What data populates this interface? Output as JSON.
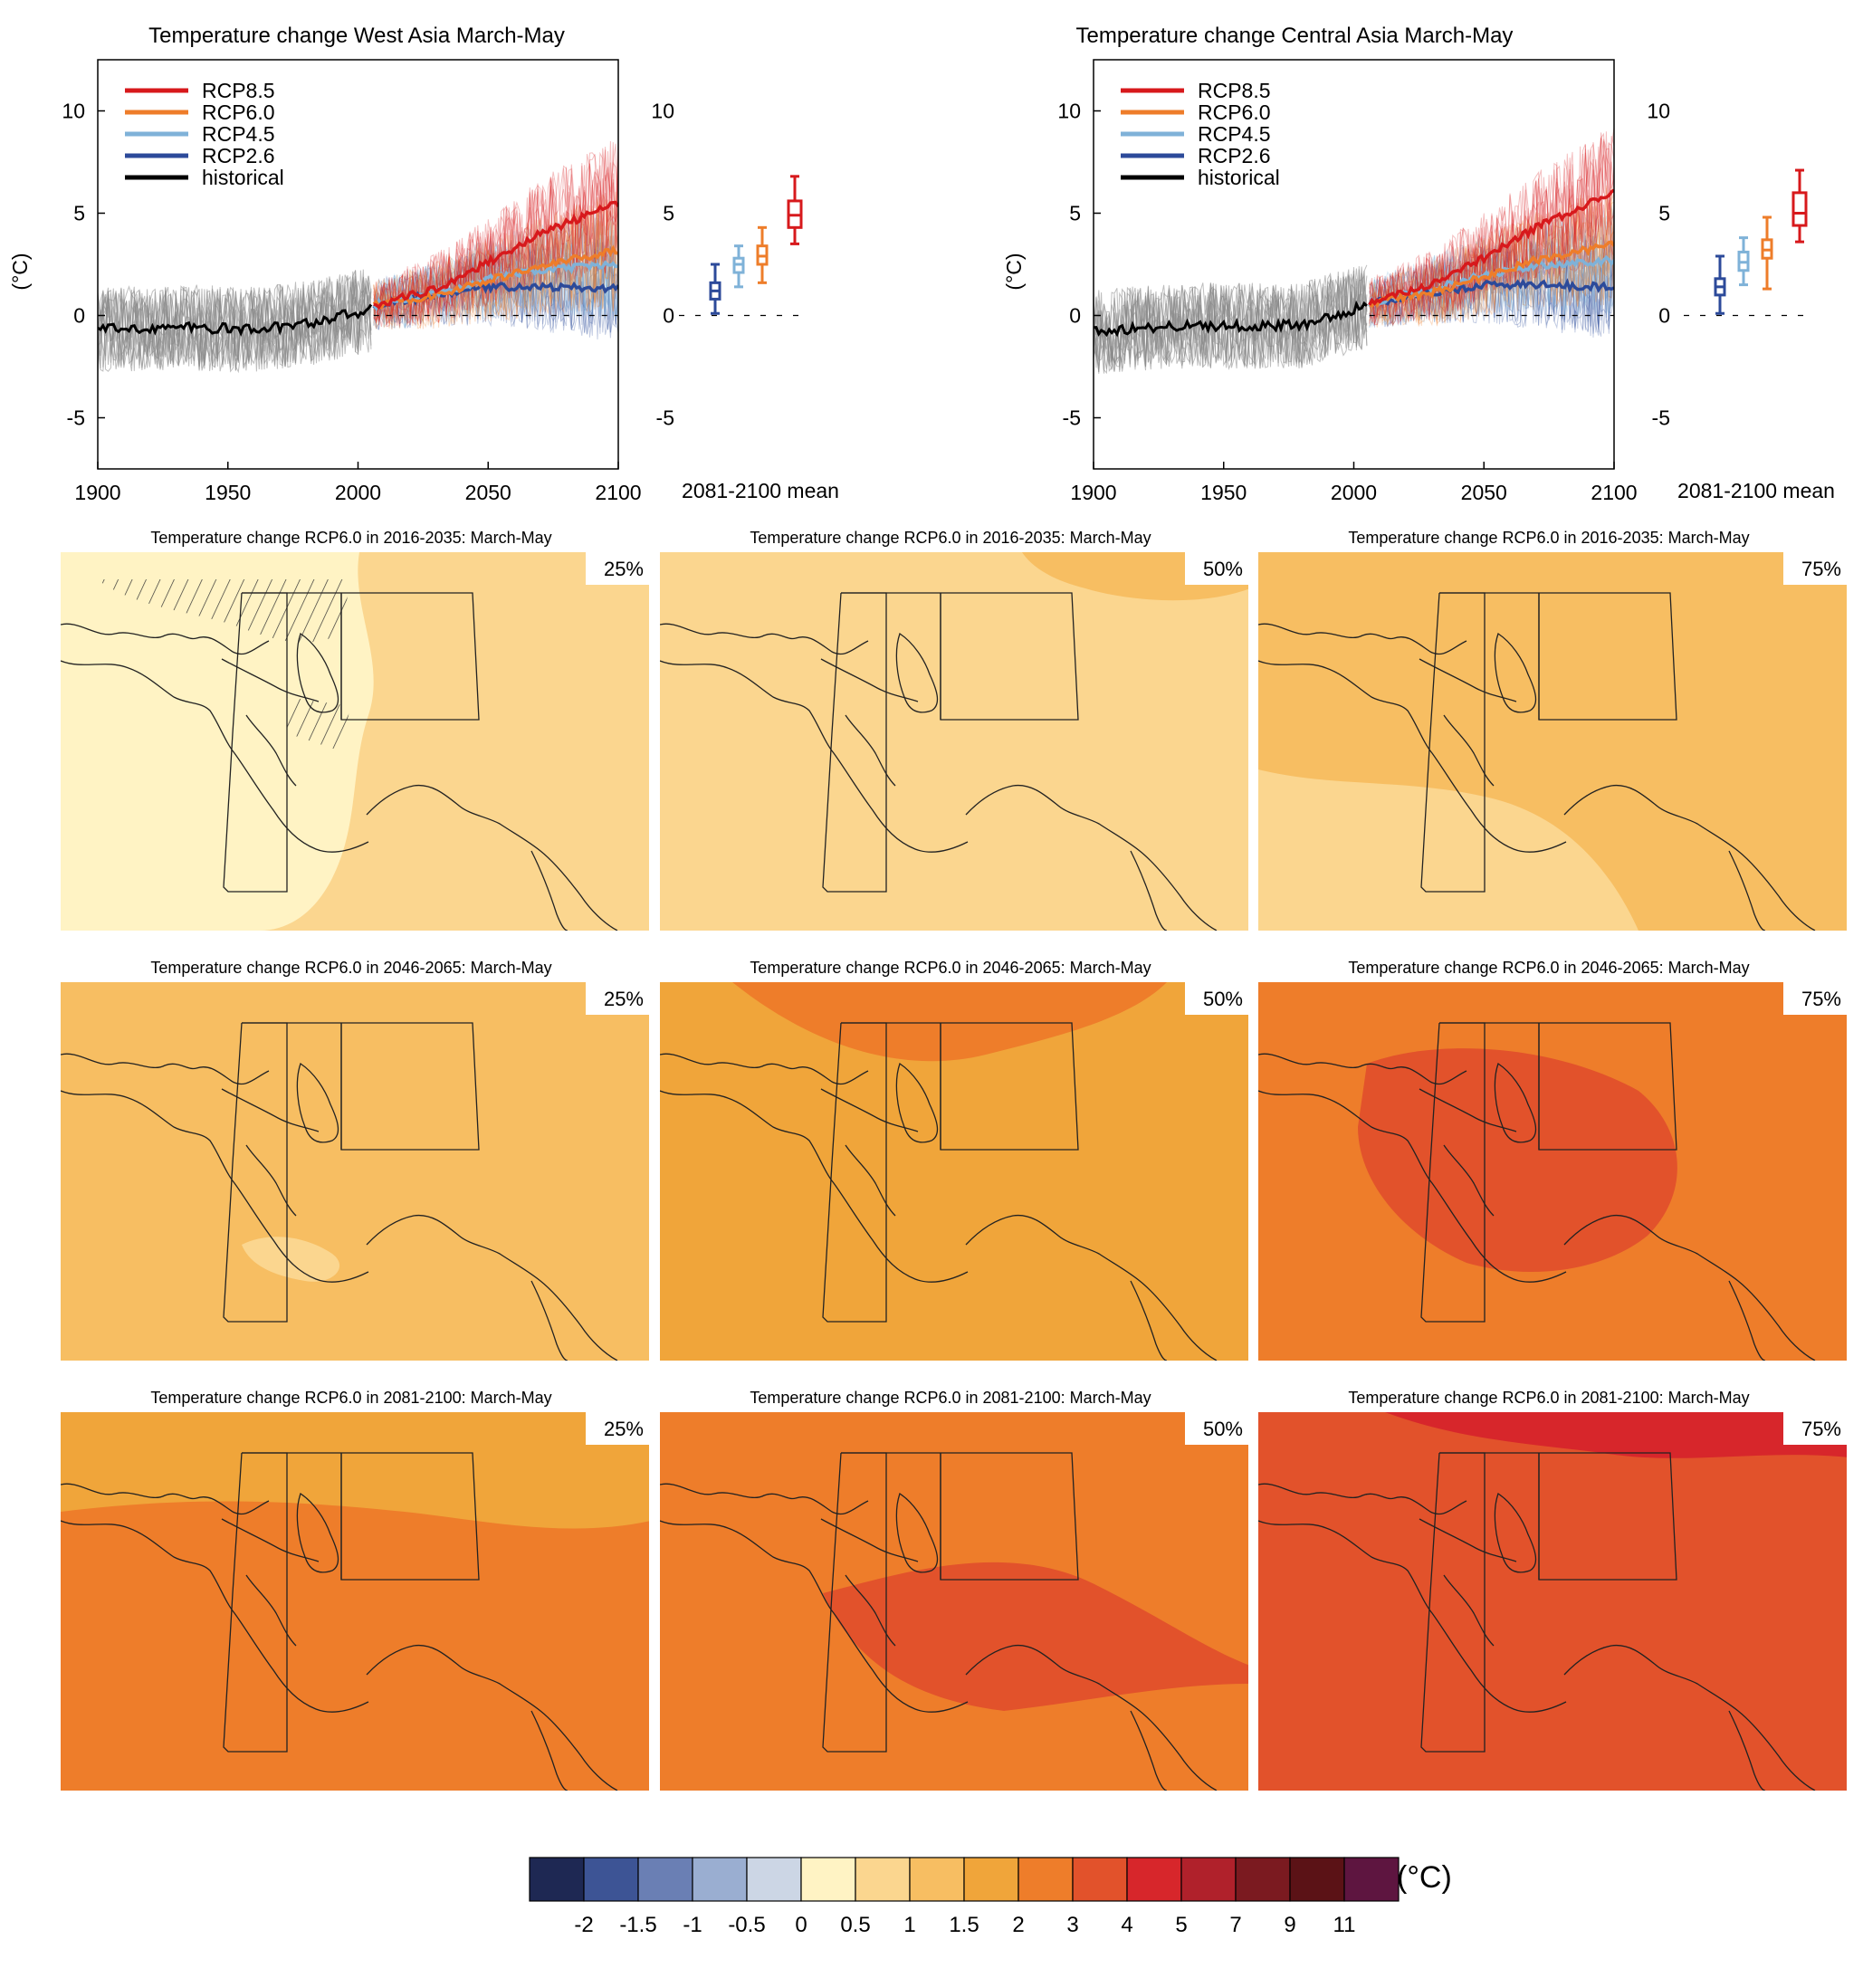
{
  "colors": {
    "rcp85": "#d7191c",
    "rcp60": "#ee7d2a",
    "rcp45": "#7fb2d8",
    "rcp26": "#2c4a9a",
    "historical": "#000000",
    "historical_spread": "#888888"
  },
  "timeseries": [
    {
      "title": "Temperature change West Asia March-May",
      "ylabel": "(°C)",
      "bottom_label": "2081-2100 mean",
      "legend": [
        "RCP8.5",
        "RCP6.0",
        "RCP4.5",
        "RCP2.6",
        "historical"
      ],
      "xticks": [
        "1900",
        "1950",
        "2000",
        "2050",
        "2100"
      ],
      "yticks": [
        "-5",
        "0",
        "5",
        "10"
      ],
      "yticks_right": [
        "-5",
        "0",
        "5",
        "10"
      ],
      "boxes": [
        {
          "scenario": "RCP2.6",
          "min": 0.1,
          "q1": 0.8,
          "median": 1.2,
          "q3": 1.6,
          "max": 2.5
        },
        {
          "scenario": "RCP4.5",
          "min": 1.4,
          "q1": 2.1,
          "median": 2.5,
          "q3": 2.8,
          "max": 3.4
        },
        {
          "scenario": "RCP6.0",
          "min": 1.6,
          "q1": 2.5,
          "median": 2.9,
          "q3": 3.4,
          "max": 4.3
        },
        {
          "scenario": "RCP8.5",
          "min": 3.5,
          "q1": 4.3,
          "median": 4.9,
          "q3": 5.6,
          "max": 6.8
        }
      ]
    },
    {
      "title": "Temperature change Central Asia March-May",
      "ylabel": "(°C)",
      "bottom_label": "2081-2100 mean",
      "legend": [
        "RCP8.5",
        "RCP6.0",
        "RCP4.5",
        "RCP2.6",
        "historical"
      ],
      "xticks": [
        "1900",
        "1950",
        "2000",
        "2050",
        "2100"
      ],
      "yticks": [
        "-5",
        "0",
        "5",
        "10"
      ],
      "yticks_right": [
        "-5",
        "0",
        "5",
        "10"
      ],
      "boxes": [
        {
          "scenario": "RCP2.6",
          "min": 0.1,
          "q1": 1.0,
          "median": 1.4,
          "q3": 1.8,
          "max": 2.9
        },
        {
          "scenario": "RCP4.5",
          "min": 1.5,
          "q1": 2.2,
          "median": 2.6,
          "q3": 3.1,
          "max": 3.8
        },
        {
          "scenario": "RCP6.0",
          "min": 1.3,
          "q1": 2.8,
          "median": 3.2,
          "q3": 3.7,
          "max": 4.8
        },
        {
          "scenario": "RCP8.5",
          "min": 3.6,
          "q1": 4.4,
          "median": 5.0,
          "q3": 6.0,
          "max": 7.1
        }
      ]
    }
  ],
  "chart_data": [
    {
      "type": "line",
      "title": "Temperature change West Asia March-May",
      "ylabel": "(°C)",
      "xlim": [
        1900,
        2100
      ],
      "ylim": [
        -7.5,
        12.5
      ],
      "series": [
        {
          "name": "historical",
          "x": [
            1900,
            1920,
            1940,
            1960,
            1980,
            2005
          ],
          "values": [
            -0.7,
            -0.6,
            -0.6,
            -0.7,
            -0.4,
            0.3
          ]
        },
        {
          "name": "RCP2.6",
          "x": [
            2006,
            2030,
            2050,
            2070,
            2100
          ],
          "values": [
            0.5,
            1.0,
            1.4,
            1.4,
            1.3
          ]
        },
        {
          "name": "RCP4.5",
          "x": [
            2006,
            2030,
            2050,
            2070,
            2100
          ],
          "values": [
            0.5,
            1.1,
            1.8,
            2.2,
            2.5
          ]
        },
        {
          "name": "RCP6.0",
          "x": [
            2006,
            2030,
            2050,
            2070,
            2100
          ],
          "values": [
            0.5,
            1.0,
            1.7,
            2.4,
            3.2
          ]
        },
        {
          "name": "RCP8.5",
          "x": [
            2006,
            2030,
            2050,
            2070,
            2100
          ],
          "values": [
            0.5,
            1.3,
            2.6,
            4.0,
            5.5
          ]
        }
      ]
    },
    {
      "type": "line",
      "title": "Temperature change Central Asia March-May",
      "ylabel": "(°C)",
      "xlim": [
        1900,
        2100
      ],
      "ylim": [
        -7.5,
        12.5
      ],
      "series": [
        {
          "name": "historical",
          "x": [
            1900,
            1920,
            1940,
            1960,
            1980,
            2005
          ],
          "values": [
            -0.8,
            -0.6,
            -0.5,
            -0.5,
            -0.5,
            0.5
          ]
        },
        {
          "name": "RCP2.6",
          "x": [
            2006,
            2030,
            2050,
            2070,
            2100
          ],
          "values": [
            0.6,
            1.1,
            1.5,
            1.5,
            1.4
          ]
        },
        {
          "name": "RCP4.5",
          "x": [
            2006,
            2030,
            2050,
            2070,
            2100
          ],
          "values": [
            0.6,
            1.3,
            2.0,
            2.4,
            2.7
          ]
        },
        {
          "name": "RCP6.0",
          "x": [
            2006,
            2030,
            2050,
            2070,
            2100
          ],
          "values": [
            0.6,
            1.1,
            1.9,
            2.7,
            3.5
          ]
        },
        {
          "name": "RCP8.5",
          "x": [
            2006,
            2030,
            2050,
            2070,
            2100
          ],
          "values": [
            0.6,
            1.5,
            2.8,
            4.3,
            6.0
          ]
        }
      ]
    },
    {
      "type": "heatmap",
      "title": "Temperature change RCP6.0 maps: March-May",
      "rows": [
        "2016-2035",
        "2046-2065",
        "2081-2100"
      ],
      "columns": [
        "25%",
        "50%",
        "75%"
      ]
    }
  ],
  "maps": [
    {
      "title": "Temperature change RCP6.0 in 2016-2035: March-May",
      "pct": "25%",
      "base": "#fbd68f",
      "patch": "#fff3c4",
      "hatch": true
    },
    {
      "title": "Temperature change RCP6.0 in 2016-2035: March-May",
      "pct": "50%",
      "base": "#fbd68f",
      "patch": "#f7be62",
      "hatch": false
    },
    {
      "title": "Temperature change RCP6.0 in 2016-2035: March-May",
      "pct": "75%",
      "base": "#f7be62",
      "patch": "#fbd68f",
      "hatch": false
    },
    {
      "title": "Temperature change RCP6.0 in 2046-2065: March-May",
      "pct": "25%",
      "base": "#f7be62",
      "patch": "#fbd68f",
      "hatch": false
    },
    {
      "title": "Temperature change RCP6.0 in 2046-2065: March-May",
      "pct": "50%",
      "base": "#f0a53a",
      "patch": "#ee7d2a",
      "hatch": false
    },
    {
      "title": "Temperature change RCP6.0 in 2046-2065: March-May",
      "pct": "75%",
      "base": "#ee7d2a",
      "patch": "#e2522b",
      "hatch": false
    },
    {
      "title": "Temperature change RCP6.0 in 2081-2100: March-May",
      "pct": "25%",
      "base": "#ee7d2a",
      "patch": "#f0a53a",
      "hatch": false
    },
    {
      "title": "Temperature change RCP6.0 in 2081-2100: March-May",
      "pct": "50%",
      "base": "#ee7d2a",
      "patch": "#e2522b",
      "hatch": false
    },
    {
      "title": "Temperature change RCP6.0 in 2081-2100: March-May",
      "pct": "75%",
      "base": "#e2522b",
      "patch": "#d7262b",
      "hatch": false
    }
  ],
  "colorbar": {
    "unit": "(°C)",
    "colors": [
      "#1e2853",
      "#3d5495",
      "#6a7fb4",
      "#9aaed1",
      "#ccd6e5",
      "#fff3c4",
      "#fbd68f",
      "#f7be62",
      "#f0a53a",
      "#ee7d2a",
      "#e2522b",
      "#d7262b",
      "#b0212b",
      "#7b1a20",
      "#5b1216",
      "#5e1540"
    ],
    "labels": [
      "-2",
      "-1.5",
      "-1",
      "-0.5",
      "0",
      "0.5",
      "1",
      "1.5",
      "2",
      "3",
      "4",
      "5",
      "7",
      "9",
      "11"
    ]
  }
}
